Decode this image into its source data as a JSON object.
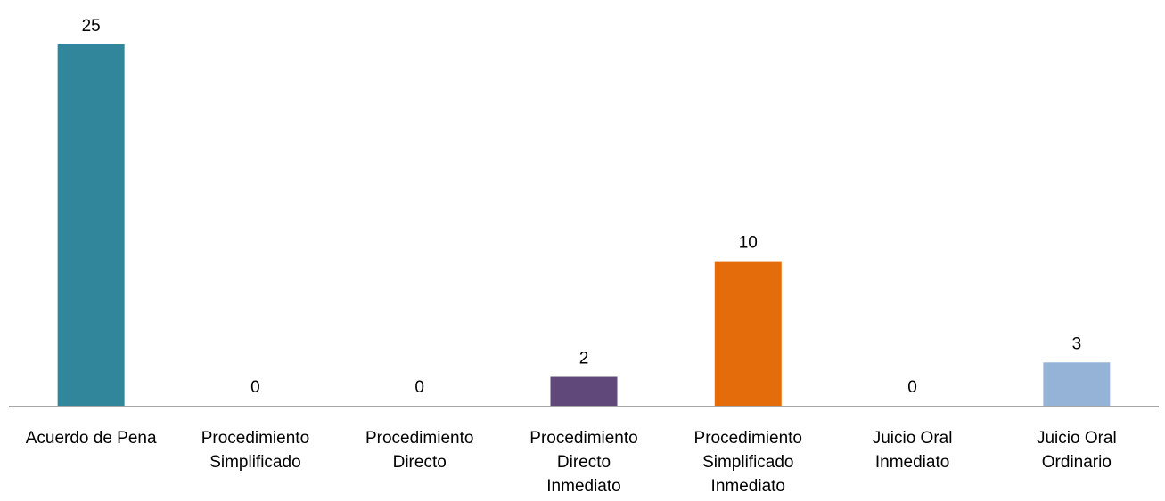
{
  "chart_data": {
    "type": "bar",
    "categories": [
      [
        "Acuerdo de Pena"
      ],
      [
        "Procedimiento",
        "Simplificado"
      ],
      [
        "Procedimiento",
        "Directo"
      ],
      [
        "Procedimiento",
        "Directo",
        "Inmediato"
      ],
      [
        "Procedimiento",
        "Simplificado",
        "Inmediato"
      ],
      [
        "Juicio Oral",
        "Inmediato"
      ],
      [
        "Juicio Oral",
        "Ordinario"
      ]
    ],
    "values": [
      25,
      0,
      0,
      2,
      10,
      0,
      3
    ],
    "colors": [
      "#31869b",
      "#31869b",
      "#31869b",
      "#60497a",
      "#e46c0a",
      "#31869b",
      "#95b3d7"
    ],
    "axis_color": "#a6a6a6",
    "ylim": [
      0,
      25
    ],
    "grid": false,
    "legend": "none",
    "data_labels": true
  }
}
